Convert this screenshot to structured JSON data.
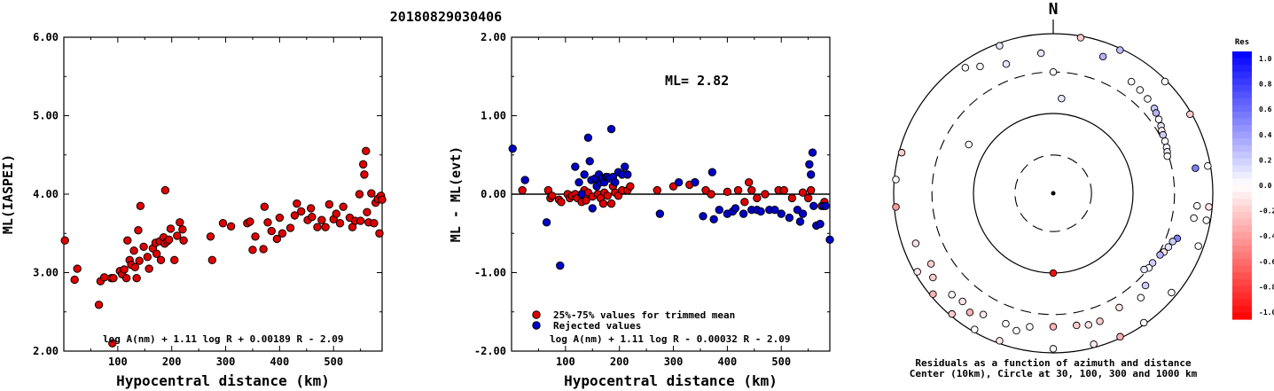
{
  "title": "20180829030406",
  "colors": {
    "red": "#e00000",
    "blue": "#0000c8",
    "black": "#000000"
  },
  "chart_data": [
    {
      "type": "scatter",
      "xlabel": "Hypocentral distance (km)",
      "ylabel": "ML(IASPEI)",
      "xlim": [
        0,
        590
      ],
      "ylim": [
        2.0,
        6.0
      ],
      "x_ticks": [
        "100",
        "200",
        "300",
        "400",
        "500"
      ],
      "y_ticks": [
        "2.00",
        "3.00",
        "4.00",
        "5.00",
        "6.00"
      ],
      "annotation": "log A(nm) + 1.11 log R + 0.00189 R - 2.09",
      "series": [
        {
          "color": "red",
          "points": [
            [
              2,
              3.41
            ],
            [
              20,
              2.91
            ],
            [
              25,
              3.05
            ],
            [
              65,
              2.59
            ],
            [
              68,
              2.89
            ],
            [
              75,
              2.94
            ],
            [
              88,
              2.93
            ],
            [
              90,
              2.1
            ],
            [
              92,
              2.93
            ],
            [
              104,
              3.02
            ],
            [
              108,
              2.98
            ],
            [
              112,
              3.04
            ],
            [
              116,
              2.93
            ],
            [
              118,
              3.41
            ],
            [
              122,
              3.16
            ],
            [
              125,
              3.1
            ],
            [
              130,
              3.28
            ],
            [
              132,
              3.07
            ],
            [
              135,
              2.93
            ],
            [
              138,
              3.54
            ],
            [
              140,
              3.15
            ],
            [
              142,
              3.85
            ],
            [
              148,
              3.33
            ],
            [
              155,
              3.2
            ],
            [
              158,
              3.05
            ],
            [
              165,
              3.31
            ],
            [
              170,
              3.38
            ],
            [
              172,
              3.24
            ],
            [
              178,
              3.4
            ],
            [
              180,
              3.16
            ],
            [
              185,
              3.45
            ],
            [
              187,
              3.37
            ],
            [
              188,
              4.05
            ],
            [
              192,
              3.4
            ],
            [
              195,
              3.42
            ],
            [
              198,
              3.56
            ],
            [
              205,
              3.16
            ],
            [
              210,
              3.47
            ],
            [
              215,
              3.64
            ],
            [
              220,
              3.55
            ],
            [
              222,
              3.41
            ],
            [
              272,
              3.46
            ],
            [
              275,
              3.16
            ],
            [
              295,
              3.63
            ],
            [
              310,
              3.59
            ],
            [
              340,
              3.63
            ],
            [
              345,
              3.65
            ],
            [
              350,
              3.29
            ],
            [
              355,
              3.46
            ],
            [
              370,
              3.3
            ],
            [
              372,
              3.84
            ],
            [
              378,
              3.64
            ],
            [
              385,
              3.53
            ],
            [
              395,
              3.43
            ],
            [
              400,
              3.7
            ],
            [
              405,
              3.5
            ],
            [
              420,
              3.57
            ],
            [
              428,
              3.73
            ],
            [
              432,
              3.88
            ],
            [
              440,
              3.78
            ],
            [
              452,
              3.67
            ],
            [
              458,
              3.82
            ],
            [
              460,
              3.71
            ],
            [
              470,
              3.58
            ],
            [
              478,
              3.67
            ],
            [
              485,
              3.58
            ],
            [
              492,
              3.87
            ],
            [
              500,
              3.68
            ],
            [
              505,
              3.75
            ],
            [
              512,
              3.63
            ],
            [
              518,
              3.84
            ],
            [
              530,
              3.7
            ],
            [
              535,
              3.58
            ],
            [
              540,
              3.66
            ],
            [
              548,
              4.0
            ],
            [
              550,
              3.66
            ],
            [
              555,
              4.38
            ],
            [
              557,
              4.25
            ],
            [
              560,
              4.55
            ],
            [
              562,
              3.77
            ],
            [
              565,
              3.64
            ],
            [
              570,
              4.01
            ],
            [
              575,
              3.63
            ],
            [
              578,
              3.89
            ],
            [
              582,
              3.94
            ],
            [
              585,
              3.5
            ],
            [
              588,
              3.98
            ],
            [
              590,
              3.93
            ]
          ]
        }
      ]
    },
    {
      "type": "scatter",
      "xlabel": "Hypocentral distance (km)",
      "ylabel": "ML - ML(evt)",
      "xlim": [
        0,
        590
      ],
      "ylim": [
        -2.0,
        2.0
      ],
      "x_ticks": [
        "100",
        "200",
        "300",
        "400",
        "500"
      ],
      "y_ticks": [
        "-2.00",
        "-1.00",
        "0.00",
        "1.00",
        "2.00"
      ],
      "ml_label": "ML= 2.82",
      "legend_position": "bottom-left",
      "annotation": "log A(nm) + 1.11 log R - 0.00032 R - 2.09",
      "series": [
        {
          "name": "25%-75% values for trimmed mean",
          "color": "red",
          "points": [
            [
              20,
              0.05
            ],
            [
              68,
              0.05
            ],
            [
              72,
              -0.05
            ],
            [
              75,
              -0.02
            ],
            [
              88,
              -0.07
            ],
            [
              92,
              -0.1
            ],
            [
              104,
              0.0
            ],
            [
              108,
              -0.05
            ],
            [
              112,
              -0.02
            ],
            [
              118,
              0.0
            ],
            [
              122,
              -0.05
            ],
            [
              130,
              -0.1
            ],
            [
              135,
              0.05
            ],
            [
              138,
              -0.08
            ],
            [
              142,
              0.02
            ],
            [
              150,
              -0.03
            ],
            [
              160,
              0.0
            ],
            [
              165,
              -0.05
            ],
            [
              170,
              -0.12
            ],
            [
              172,
              0.02
            ],
            [
              178,
              -0.02
            ],
            [
              185,
              -0.12
            ],
            [
              188,
              0.1
            ],
            [
              192,
              0.02
            ],
            [
              198,
              -0.02
            ],
            [
              205,
              0.05
            ],
            [
              215,
              0.05
            ],
            [
              220,
              0.1
            ],
            [
              270,
              0.05
            ],
            [
              300,
              0.1
            ],
            [
              330,
              0.12
            ],
            [
              340,
              0.15
            ],
            [
              360,
              0.05
            ],
            [
              370,
              0.0
            ],
            [
              400,
              0.03
            ],
            [
              420,
              0.05
            ],
            [
              432,
              -0.1
            ],
            [
              440,
              0.15
            ],
            [
              445,
              0.05
            ],
            [
              455,
              -0.05
            ],
            [
              470,
              0.0
            ],
            [
              495,
              0.05
            ],
            [
              505,
              0.05
            ],
            [
              520,
              -0.05
            ],
            [
              540,
              0.02
            ],
            [
              550,
              -0.05
            ],
            [
              555,
              0.05
            ],
            [
              575,
              -0.15
            ],
            [
              580,
              -0.1
            ]
          ]
        },
        {
          "name": "Rejected values",
          "color": "blue",
          "points": [
            [
              2,
              0.58
            ],
            [
              25,
              0.18
            ],
            [
              65,
              -0.36
            ],
            [
              90,
              -0.91
            ],
            [
              118,
              0.35
            ],
            [
              125,
              0.15
            ],
            [
              130,
              0.0
            ],
            [
              135,
              0.25
            ],
            [
              142,
              0.72
            ],
            [
              145,
              0.42
            ],
            [
              148,
              0.18
            ],
            [
              150,
              -0.18
            ],
            [
              155,
              0.2
            ],
            [
              158,
              0.1
            ],
            [
              162,
              0.25
            ],
            [
              165,
              0.15
            ],
            [
              168,
              0.2
            ],
            [
              172,
              0.15
            ],
            [
              175,
              0.22
            ],
            [
              178,
              0.22
            ],
            [
              182,
              0.2
            ],
            [
              185,
              0.83
            ],
            [
              188,
              0.22
            ],
            [
              192,
              0.15
            ],
            [
              198,
              0.28
            ],
            [
              205,
              0.25
            ],
            [
              210,
              0.35
            ],
            [
              215,
              0.25
            ],
            [
              275,
              -0.25
            ],
            [
              310,
              0.15
            ],
            [
              340,
              0.15
            ],
            [
              355,
              -0.28
            ],
            [
              372,
              0.28
            ],
            [
              375,
              -0.32
            ],
            [
              385,
              -0.2
            ],
            [
              400,
              -0.25
            ],
            [
              410,
              -0.22
            ],
            [
              415,
              -0.18
            ],
            [
              430,
              -0.25
            ],
            [
              445,
              -0.2
            ],
            [
              455,
              -0.2
            ],
            [
              462,
              -0.22
            ],
            [
              478,
              -0.2
            ],
            [
              488,
              -0.2
            ],
            [
              500,
              -0.25
            ],
            [
              515,
              -0.3
            ],
            [
              530,
              -0.2
            ],
            [
              535,
              -0.35
            ],
            [
              540,
              -0.25
            ],
            [
              552,
              0.38
            ],
            [
              555,
              0.25
            ],
            [
              558,
              0.53
            ],
            [
              560,
              -0.15
            ],
            [
              565,
              -0.4
            ],
            [
              572,
              -0.38
            ],
            [
              578,
              -0.15
            ],
            [
              582,
              -0.15
            ],
            [
              590,
              -0.58
            ]
          ]
        }
      ]
    },
    {
      "type": "polar-scatter",
      "north_label": "N",
      "caption_line1": "Residuals as a function of azimuth and distance",
      "caption_line2": "Center (10km), Circle at 30, 100, 300 and 1000 km",
      "colorbar_title": "Res",
      "colorbar_ticks": [
        "1.0",
        "0.8",
        "0.6",
        "0.4",
        "0.2",
        "0.0",
        "-0.2",
        "-0.4",
        "-0.6",
        "-0.8",
        "-1.0"
      ],
      "stations_az_dist_res": [
        [
          340,
          920,
          0.1
        ],
        [
          10,
          950,
          -0.2
        ],
        [
          25,
          950,
          0.25
        ],
        [
          45,
          950,
          0.0
        ],
        [
          60,
          950,
          -0.2
        ],
        [
          80,
          920,
          0.0
        ],
        [
          95,
          900,
          -0.1
        ],
        [
          100,
          880,
          0.0
        ],
        [
          110,
          850,
          0.0
        ],
        [
          130,
          850,
          0.0
        ],
        [
          145,
          950,
          0.0
        ],
        [
          155,
          960,
          -0.3
        ],
        [
          165,
          900,
          -0.1
        ],
        [
          180,
          880,
          0.0
        ],
        [
          200,
          920,
          -0.1
        ],
        [
          210,
          930,
          0.0
        ],
        [
          220,
          940,
          -0.2
        ],
        [
          230,
          920,
          -0.3
        ],
        [
          240,
          920,
          -0.1
        ],
        [
          265,
          950,
          -0.4
        ],
        [
          275,
          950,
          0.0
        ],
        [
          285,
          920,
          -0.2
        ],
        [
          325,
          820,
          0.0
        ],
        [
          330,
          660,
          0.0
        ],
        [
          20,
          640,
          0.3
        ],
        [
          35,
          480,
          0.0
        ],
        [
          40,
          460,
          0.0
        ],
        [
          45,
          440,
          0.0
        ],
        [
          50,
          420,
          0.2
        ],
        [
          52,
          400,
          0.3
        ],
        [
          55,
          380,
          0.0
        ],
        [
          58,
          360,
          0.1
        ],
        [
          60,
          340,
          -0.1
        ],
        [
          62,
          330,
          0.2
        ],
        [
          65,
          320,
          0.0
        ],
        [
          68,
          310,
          0.0
        ],
        [
          70,
          300,
          0.1
        ],
        [
          72,
          290,
          0.0
        ],
        [
          80,
          620,
          0.5
        ],
        [
          95,
          620,
          0.0
        ],
        [
          100,
          590,
          0.0
        ],
        [
          110,
          420,
          0.5
        ],
        [
          112,
          380,
          0.2
        ],
        [
          115,
          360,
          0.1
        ],
        [
          118,
          340,
          -0.1
        ],
        [
          120,
          320,
          0.3
        ],
        [
          125,
          300,
          0.2
        ],
        [
          128,
          300,
          0.0
        ],
        [
          130,
          280,
          0.1
        ],
        [
          135,
          400,
          0.2
        ],
        [
          140,
          480,
          0.0
        ],
        [
          150,
          420,
          -0.1
        ],
        [
          160,
          480,
          -0.2
        ],
        [
          170,
          450,
          -0.2
        ],
        [
          180,
          440,
          -0.3
        ],
        [
          190,
          470,
          0.0
        ],
        [
          200,
          520,
          0.0
        ],
        [
          210,
          540,
          -0.1
        ],
        [
          220,
          560,
          -0.1
        ],
        [
          225,
          600,
          0.0
        ],
        [
          240,
          560,
          -0.2
        ],
        [
          250,
          660,
          -0.1
        ],
        [
          300,
          160,
          0.0
        ],
        [
          5,
          150,
          0.1
        ],
        [
          180,
          100,
          -0.95
        ],
        [
          0,
          300,
          0.0
        ],
        [
          340,
          500,
          0.1
        ],
        [
          355,
          550,
          0.1
        ],
        [
          165,
          480,
          -0.1
        ],
        [
          195,
          580,
          0.0
        ],
        [
          215,
          640,
          -0.3
        ],
        [
          235,
          670,
          -0.2
        ]
      ]
    }
  ]
}
